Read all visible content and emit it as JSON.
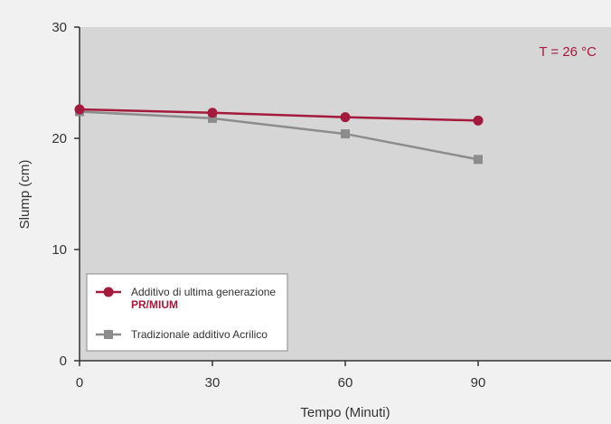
{
  "chart_data": {
    "type": "line",
    "title": "",
    "xlabel": "Tempo (Minuti)",
    "ylabel": "Slump (cm)",
    "xlim": [
      0,
      120
    ],
    "ylim": [
      0,
      30
    ],
    "x_ticks": [
      0,
      30,
      60,
      90
    ],
    "y_ticks": [
      0,
      10,
      20,
      30
    ],
    "annotation": "T = 26 °C",
    "grid": false,
    "legend_position": "bottom-left",
    "series": [
      {
        "name": "Additivo di ultima generazione",
        "name_bold": "PR/MIUM",
        "marker": "circle",
        "color": "#a31a3c",
        "x": [
          0,
          30,
          60,
          90
        ],
        "values": [
          22.6,
          22.3,
          21.9,
          21.6
        ]
      },
      {
        "name": "Tradizionale additivo Acrilico",
        "marker": "square",
        "color": "#8c8c8c",
        "x": [
          0,
          30,
          60,
          90
        ],
        "values": [
          22.4,
          21.8,
          20.4,
          18.1
        ]
      }
    ],
    "colors": {
      "plot_background": "#d6d6d6",
      "page_background": "#f1f1f1",
      "axis": "#333333",
      "annotation": "#a31a3c"
    }
  }
}
